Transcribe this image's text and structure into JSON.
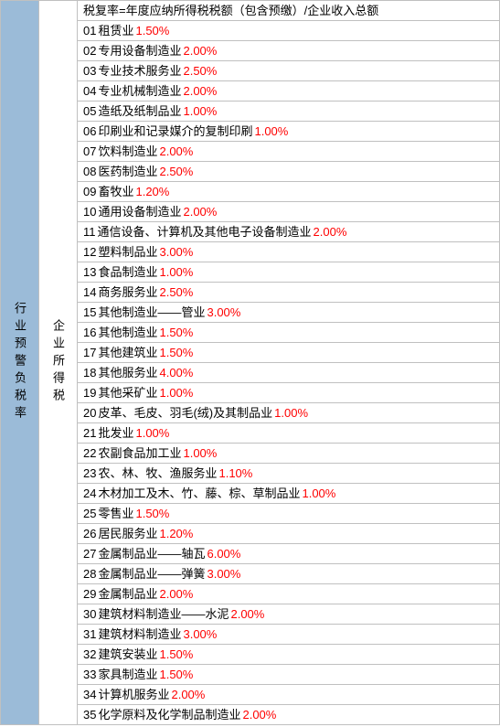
{
  "sidebar_a_label": "行业预警负税率",
  "sidebar_b_label": "企业所得税",
  "header_row": "税复率=年度应纳所得税税额（包含预缴）/企业收入总额",
  "percent_color": "#ff0000",
  "text_color": "#000000",
  "sidebar_a_bg": "#9bbbd8",
  "border_color": "#c0c0c0",
  "rows": [
    {
      "idx": "01",
      "label": "租赁业",
      "pct": "1.50%"
    },
    {
      "idx": "02",
      "label": "专用设备制造业",
      "pct": "2.00%"
    },
    {
      "idx": "03",
      "label": "专业技术服务业",
      "pct": "2.50%"
    },
    {
      "idx": "04",
      "label": "专业机械制造业",
      "pct": "2.00%"
    },
    {
      "idx": "05",
      "label": "造纸及纸制品业",
      "pct": "1.00%"
    },
    {
      "idx": "06",
      "label": "印刷业和记录媒介的复制印刷",
      "pct": "1.00%"
    },
    {
      "idx": "07",
      "label": "饮料制造业",
      "pct": "2.00%"
    },
    {
      "idx": "08",
      "label": "医药制造业",
      "pct": "2.50%"
    },
    {
      "idx": "09",
      "label": "畜牧业",
      "pct": "1.20%"
    },
    {
      "idx": "10",
      "label": "通用设备制造业",
      "pct": "2.00%"
    },
    {
      "idx": "11",
      "label": "通信设备、计算机及其他电子设备制造业",
      "pct": "2.00%"
    },
    {
      "idx": "12",
      "label": "塑料制品业",
      "pct": "3.00%"
    },
    {
      "idx": "13",
      "label": "食品制造业",
      "pct": "1.00%"
    },
    {
      "idx": "14",
      "label": "商务服务业",
      "pct": "2.50%"
    },
    {
      "idx": "15",
      "label": "其他制造业——管业",
      "pct": "3.00%"
    },
    {
      "idx": "16",
      "label": "其他制造业",
      "pct": "1.50%"
    },
    {
      "idx": "17",
      "label": "其他建筑业",
      "pct": "1.50%"
    },
    {
      "idx": "18",
      "label": "其他服务业",
      "pct": "4.00%"
    },
    {
      "idx": "19",
      "label": "其他采矿业",
      "pct": "1.00%"
    },
    {
      "idx": "20",
      "label": "皮革、毛皮、羽毛(绒)及其制品业",
      "pct": "1.00%"
    },
    {
      "idx": "21",
      "label": "批发业",
      "pct": "1.00%"
    },
    {
      "idx": "22",
      "label": "农副食品加工业",
      "pct": "1.00%"
    },
    {
      "idx": "23",
      "label": "农、林、牧、渔服务业",
      "pct": "1.10%"
    },
    {
      "idx": "24",
      "label": "木材加工及木、竹、藤、棕、草制品业",
      "pct": "1.00%"
    },
    {
      "idx": "25",
      "label": "零售业",
      "pct": "1.50%"
    },
    {
      "idx": "26",
      "label": "居民服务业",
      "pct": "1.20%"
    },
    {
      "idx": "27",
      "label": "金属制品业——轴瓦",
      "pct": "6.00%"
    },
    {
      "idx": "28",
      "label": "金属制品业——弹簧",
      "pct": "3.00%"
    },
    {
      "idx": "29",
      "label": "金属制品业",
      "pct": "2.00%"
    },
    {
      "idx": "30",
      "label": "建筑材料制造业——水泥",
      "pct": "2.00%"
    },
    {
      "idx": "31",
      "label": "建筑材料制造业",
      "pct": "3.00%"
    },
    {
      "idx": "32",
      "label": "建筑安装业",
      "pct": "1.50%"
    },
    {
      "idx": "33",
      "label": "家具制造业",
      "pct": "1.50%"
    },
    {
      "idx": "34",
      "label": "计算机服务业",
      "pct": "2.00%"
    },
    {
      "idx": "35",
      "label": "化学原料及化学制品制造业",
      "pct": "2.00%"
    }
  ]
}
